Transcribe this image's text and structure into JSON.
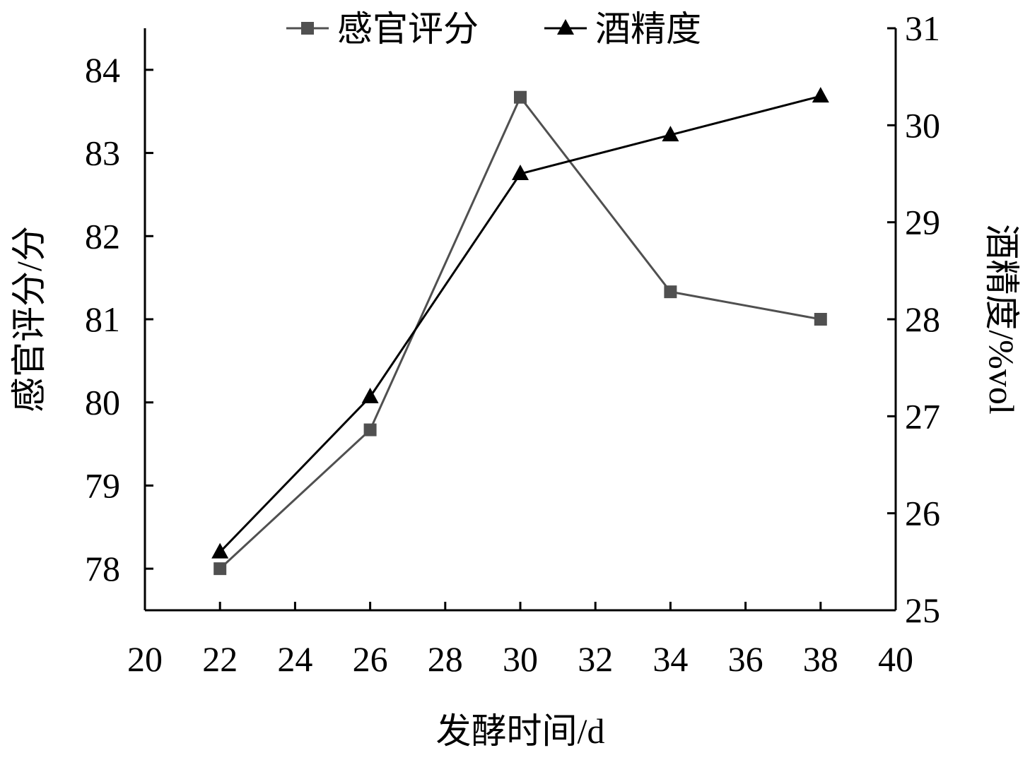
{
  "chart_data": {
    "type": "line",
    "x_label": "发酵时间/d",
    "y_label": "感官评分/分",
    "y2_label": "酒精度/%vol",
    "x": [
      22,
      26,
      30,
      34,
      38
    ],
    "xlim": [
      20,
      40
    ],
    "xticks": [
      20,
      22,
      24,
      26,
      28,
      30,
      32,
      34,
      36,
      38,
      40
    ],
    "ylim": [
      77.5,
      84.5
    ],
    "yticks": [
      78,
      79,
      80,
      81,
      82,
      83,
      84
    ],
    "y2lim": [
      25,
      31
    ],
    "y2ticks": [
      25,
      26,
      27,
      28,
      29,
      30,
      31
    ],
    "series": [
      {
        "name": "感官评分",
        "color": "#505050",
        "marker": "square",
        "values": [
          78.0,
          79.67,
          83.67,
          81.33,
          81.0
        ]
      },
      {
        "name": "酒精度",
        "color": "#000000",
        "marker": "triangle",
        "axis": "y2",
        "values": [
          25.6,
          27.2,
          29.5,
          29.9,
          30.3
        ]
      }
    ]
  }
}
